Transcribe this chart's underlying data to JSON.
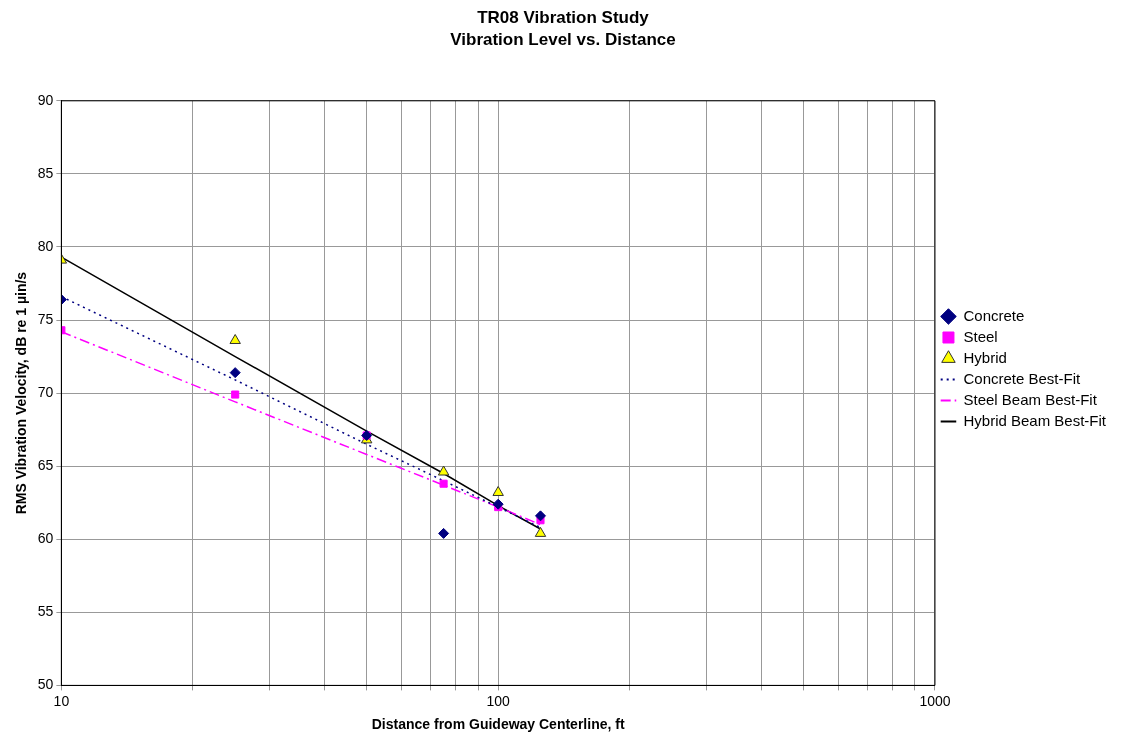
{
  "chart_data": {
    "type": "scatter",
    "title": "TR08 Vibration Study",
    "subtitle": "Vibration Level vs. Distance",
    "xlabel": "Distance from Guideway Centerline, ft",
    "ylabel": "RMS Vibration Velocity, dB re 1 µin/s",
    "log": "x",
    "grid": true,
    "legend": "right",
    "xlim": [
      10,
      1000
    ],
    "xticks": [
      10,
      {
        "value": 20,
        "label": null
      },
      {
        "value": 30,
        "label": null
      },
      {
        "value": 40,
        "label": null
      },
      {
        "value": 50,
        "label": null
      },
      {
        "value": 60,
        "label": null
      },
      {
        "value": 70,
        "label": null
      },
      {
        "value": 80,
        "label": null
      },
      {
        "value": 90,
        "label": null
      },
      100,
      {
        "value": 200,
        "label": null
      },
      {
        "value": 300,
        "label": null
      },
      {
        "value": 400,
        "label": null
      },
      {
        "value": 500,
        "label": null
      },
      {
        "value": 600,
        "label": null
      },
      {
        "value": 700,
        "label": null
      },
      {
        "value": 800,
        "label": null
      },
      {
        "value": 900,
        "label": null
      },
      1000
    ],
    "ylim": [
      50,
      90
    ],
    "yticks": [
      50,
      55,
      60,
      65,
      70,
      75,
      80,
      85,
      90
    ],
    "x": [
      10,
      25,
      50,
      75,
      100,
      125
    ],
    "series": [
      {
        "name": "Concrete",
        "type": "scatter",
        "marker": "diamond",
        "color": "#000080",
        "values": [
          76.4,
          71.4,
          67.1,
          60.4,
          62.4,
          61.6
        ]
      },
      {
        "name": "Steel",
        "type": "scatter",
        "marker": "square",
        "color": "#ff00ff",
        "values": [
          74.3,
          69.9,
          67.1,
          63.8,
          62.2,
          61.3
        ]
      },
      {
        "name": "Hybrid",
        "type": "scatter",
        "marker": "triangle",
        "color": "#ffff00",
        "values": [
          79.1,
          73.6,
          66.8,
          64.6,
          63.2,
          60.4
        ]
      },
      {
        "name": "Concrete Best-Fit",
        "type": "line",
        "line_style": "dotted",
        "marker": "none",
        "color": "#000080",
        "values": [
          76.6,
          70.9,
          66.5,
          64.0,
          62.2,
          60.8
        ]
      },
      {
        "name": "Steel Beam Best-Fit",
        "type": "line",
        "line_style": "dashdot",
        "marker": "none",
        "color": "#ff00ff",
        "values": [
          74.2,
          69.4,
          65.8,
          63.7,
          62.2,
          61.0
        ]
      },
      {
        "name": "Hybrid Beam Best-Fit",
        "type": "line",
        "line_style": "solid",
        "marker": "none",
        "color": "#000000",
        "values": [
          79.3,
          72.5,
          67.4,
          64.5,
          62.3,
          60.7
        ]
      }
    ]
  }
}
